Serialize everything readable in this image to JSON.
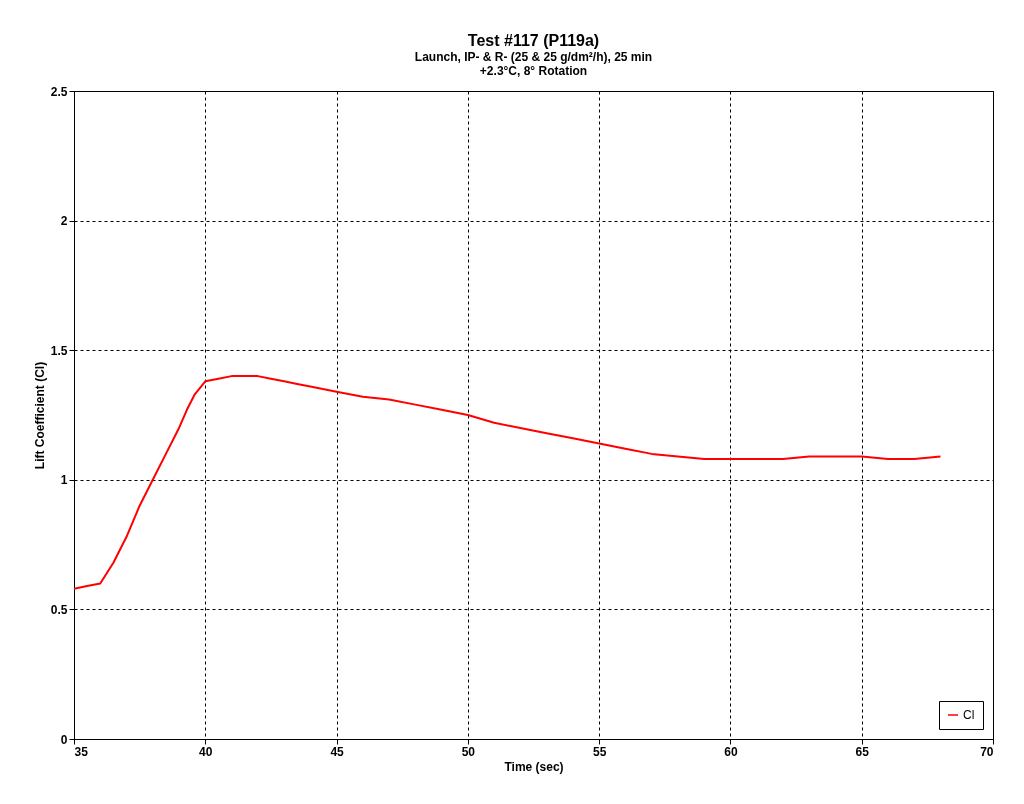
{
  "chart_data": {
    "type": "line",
    "title": "Test #117  (P119a)",
    "subtitle": "Launch, IP- & R- (25 & 25 g/dm²/h),  25 min\n+2.3°C, 8° Rotation",
    "xlabel": "Time (sec)",
    "ylabel": "Lift Coefficient (Cl)",
    "xlim": [
      35,
      70
    ],
    "xticks": [
      35,
      40,
      45,
      50,
      55,
      60,
      65,
      70
    ],
    "ylim": [
      0,
      2.5
    ],
    "yticks": [
      0,
      0.5,
      1,
      1.5,
      2,
      2.5
    ],
    "grid": true,
    "legend": "bottom right",
    "line_style": "solid",
    "marker": "none",
    "x": [
      35,
      35.5,
      36,
      36.5,
      37,
      37.5,
      38,
      38.5,
      39,
      39.3,
      39.6,
      40,
      40.5,
      41,
      41.5,
      42,
      42.5,
      43,
      43.5,
      44,
      45,
      46,
      47,
      48,
      49,
      50,
      51,
      52,
      53,
      54,
      55,
      56,
      57,
      58,
      59,
      60,
      61,
      62,
      63,
      64,
      65,
      66,
      67,
      68
    ],
    "series": [
      {
        "name": "Cl",
        "color": "#ff0000",
        "values": [
          0.58,
          0.59,
          0.6,
          0.68,
          0.78,
          0.9,
          1.0,
          1.1,
          1.2,
          1.27,
          1.33,
          1.38,
          1.39,
          1.4,
          1.4,
          1.4,
          1.39,
          1.38,
          1.37,
          1.36,
          1.34,
          1.32,
          1.31,
          1.29,
          1.27,
          1.25,
          1.22,
          1.2,
          1.18,
          1.16,
          1.14,
          1.12,
          1.1,
          1.09,
          1.08,
          1.08,
          1.08,
          1.08,
          1.09,
          1.09,
          1.09,
          1.08,
          1.08,
          1.09
        ]
      }
    ]
  }
}
